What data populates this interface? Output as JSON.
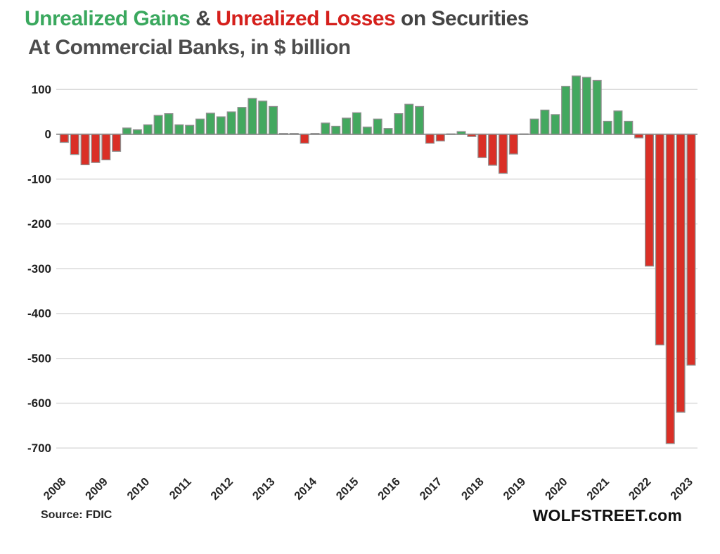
{
  "page": {
    "background": "#ffffff"
  },
  "title": {
    "line1_segments": [
      {
        "text": "Unrealized Gains",
        "color": "#3aa85e"
      },
      {
        "text": " & ",
        "color": "#444444"
      },
      {
        "text": "Unrealized Losses",
        "color": "#d5201c"
      },
      {
        "text": " on Securities",
        "color": "#444444"
      }
    ],
    "line2": {
      "text": "At Commercial Banks, in $ billion",
      "color": "#4d4d4d"
    }
  },
  "footer": {
    "source": "Source: FDIC",
    "brand": "WOLFSTREET.com"
  },
  "chart_data": {
    "type": "bar",
    "title": "Unrealized Gains & Unrealized Losses on Securities At Commercial Banks",
    "ylabel": "$ billion",
    "xlabel": "",
    "ylim": [
      -700,
      150
    ],
    "yticks": [
      100,
      0,
      -100,
      -200,
      -300,
      -400,
      -500,
      -600,
      -700
    ],
    "grid": "horizontal",
    "legend": "none",
    "colors": {
      "positive": "#43a85f",
      "negative": "#da2f26",
      "outline": "#8f8f8f",
      "gridline": "#d9d9d9",
      "zeroline": "#a0a0a0"
    },
    "x_year_labels": [
      "2008",
      "2009",
      "2010",
      "2011",
      "2012",
      "2013",
      "2014",
      "2015",
      "2016",
      "2017",
      "2018",
      "2019",
      "2020",
      "2021",
      "2022",
      "2023"
    ],
    "categories": [
      "2008 Q1",
      "2008 Q2",
      "2008 Q3",
      "2008 Q4",
      "2009 Q1",
      "2009 Q2",
      "2009 Q3",
      "2009 Q4",
      "2010 Q1",
      "2010 Q2",
      "2010 Q3",
      "2010 Q4",
      "2011 Q1",
      "2011 Q2",
      "2011 Q3",
      "2011 Q4",
      "2012 Q1",
      "2012 Q2",
      "2012 Q3",
      "2012 Q4",
      "2013 Q1",
      "2013 Q2",
      "2013 Q3",
      "2013 Q4",
      "2014 Q1",
      "2014 Q2",
      "2014 Q3",
      "2014 Q4",
      "2015 Q1",
      "2015 Q2",
      "2015 Q3",
      "2015 Q4",
      "2016 Q1",
      "2016 Q2",
      "2016 Q3",
      "2016 Q4",
      "2017 Q1",
      "2017 Q2",
      "2017 Q3",
      "2017 Q4",
      "2018 Q1",
      "2018 Q2",
      "2018 Q3",
      "2018 Q4",
      "2019 Q1",
      "2019 Q2",
      "2019 Q3",
      "2019 Q4",
      "2020 Q1",
      "2020 Q2",
      "2020 Q3",
      "2020 Q4",
      "2021 Q1",
      "2021 Q2",
      "2021 Q3",
      "2021 Q4",
      "2022 Q1",
      "2022 Q2",
      "2022 Q3",
      "2022 Q4",
      "2023 Q1"
    ],
    "values": [
      -18,
      -45,
      -68,
      -63,
      -57,
      -38,
      14,
      10,
      21,
      42,
      46,
      21,
      20,
      34,
      47,
      39,
      50,
      60,
      80,
      74,
      62,
      2,
      2,
      -20,
      2,
      25,
      18,
      36,
      48,
      16,
      34,
      13,
      46,
      67,
      62,
      -20,
      -15,
      1,
      6,
      -5,
      -52,
      -69,
      -87,
      -44,
      1,
      34,
      54,
      44,
      107,
      130,
      127,
      120,
      29,
      52,
      29,
      -8,
      -294,
      -470,
      -690,
      -620,
      -515
    ]
  }
}
